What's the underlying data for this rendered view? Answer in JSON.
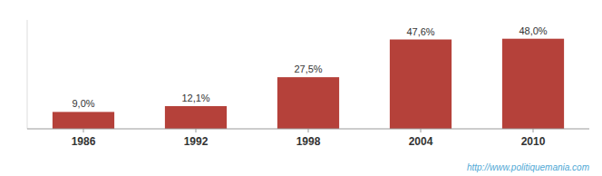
{
  "chart_data": {
    "type": "bar",
    "categories": [
      "1986",
      "1992",
      "1998",
      "2004",
      "2010"
    ],
    "values": [
      9.0,
      12.1,
      27.5,
      47.6,
      48.0
    ],
    "value_labels": [
      "9,0%",
      "12,1%",
      "27,5%",
      "47,6%",
      "48,0%"
    ],
    "color": "#b5413a",
    "ylim": [
      0,
      58
    ],
    "data_labels": true,
    "tick_labels": "x",
    "annotations": [
      "http://www.politiquemania.com"
    ]
  }
}
